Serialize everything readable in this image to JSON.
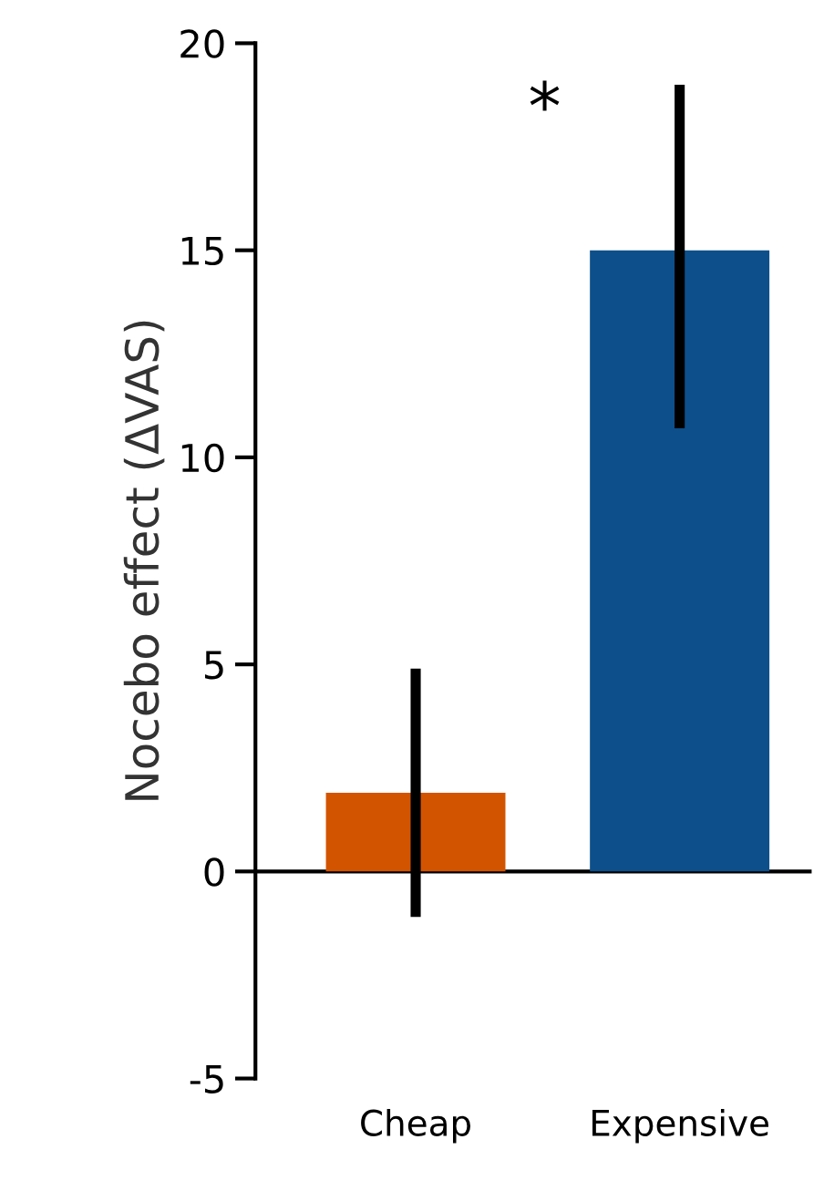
{
  "chart_data": {
    "type": "bar",
    "ylabel": "Nocebo effect (ΔVAS)",
    "categories": [
      "Cheap",
      "Expensive"
    ],
    "values": [
      1.9,
      15.0
    ],
    "colors": [
      "#d35400",
      "#0d4f8b"
    ],
    "errors": [
      [
        -1.1,
        4.9
      ],
      [
        10.7,
        19.0
      ]
    ],
    "ylim": [
      -5,
      20
    ],
    "yticks": [
      -5,
      0,
      5,
      10,
      15,
      20
    ],
    "ref_lines": [
      {
        "axis": "y",
        "value": 0,
        "color": "#000000"
      }
    ],
    "annotations": [
      "*"
    ],
    "grid": false,
    "legend": false
  }
}
